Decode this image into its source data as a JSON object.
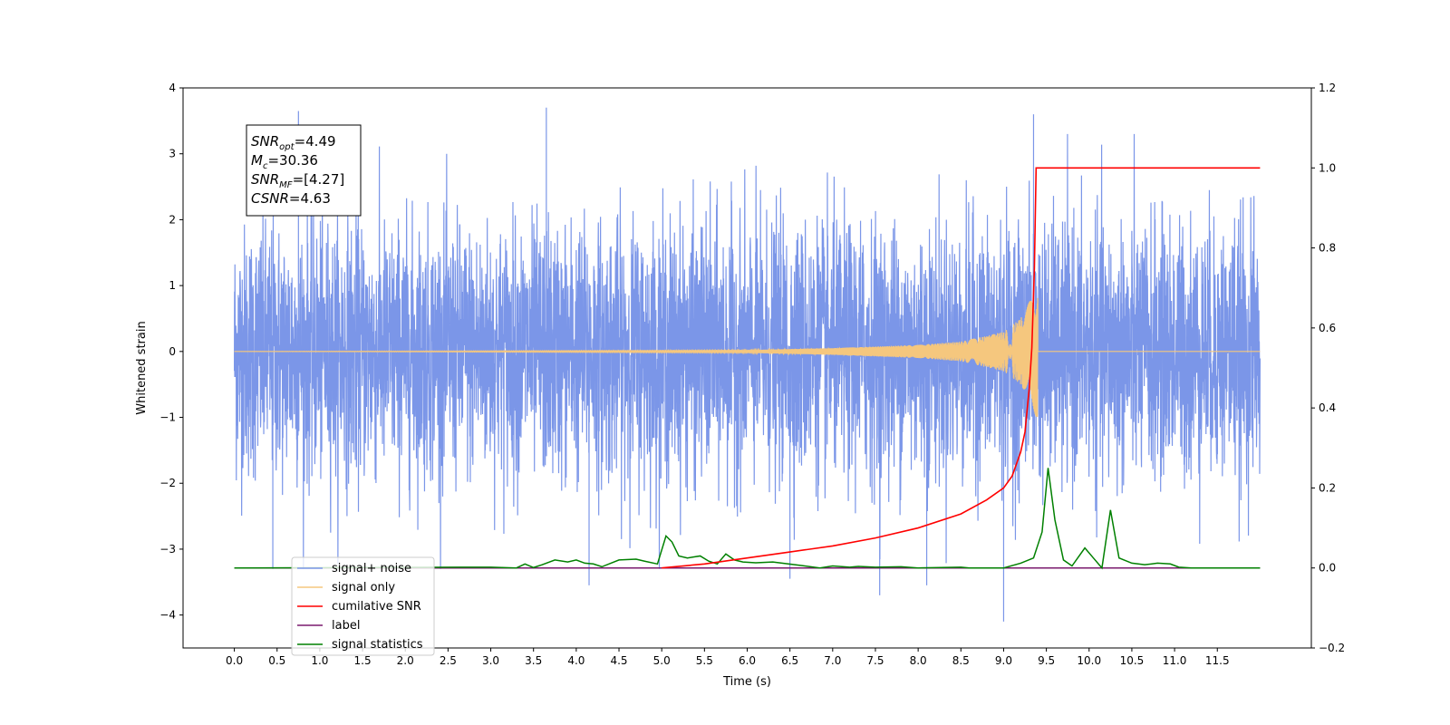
{
  "chart_data": {
    "type": "line",
    "xlabel": "Time (s)",
    "ylabel": "Whitened strain",
    "xlim": [
      -0.6,
      12.6
    ],
    "ylim": [
      -4.5,
      4.0
    ],
    "y2lim": [
      -0.2,
      1.2
    ],
    "grid": false,
    "legend_position": "bottom-left",
    "x_ticks": [
      "0.0",
      "0.5",
      "1.0",
      "1.5",
      "2.0",
      "2.5",
      "3.0",
      "3.5",
      "4.0",
      "4.5",
      "5.0",
      "5.5",
      "6.0",
      "6.5",
      "7.0",
      "7.5",
      "8.0",
      "8.5",
      "9.0",
      "9.5",
      "10.0",
      "10.5",
      "11.0",
      "11.5"
    ],
    "y_ticks": [
      "4",
      "3",
      "2",
      "1",
      "0",
      "−1",
      "−2",
      "−3",
      "−4"
    ],
    "y2_ticks": [
      "1.2",
      "1.0",
      "0.8",
      "0.6",
      "0.4",
      "0.2",
      "0.0",
      "−0.2"
    ],
    "annotation": {
      "lines": [
        {
          "main": "SNR",
          "sub": "opt",
          "rest": "=4.49"
        },
        {
          "main": "M",
          "sub": "c",
          "rest": "=30.36"
        },
        {
          "main": "SNR",
          "sub": "MF",
          "rest": "=[4.27]"
        },
        {
          "main": "CSNR",
          "sub": "",
          "rest": "=4.63"
        }
      ]
    },
    "legend": [
      {
        "label": "signal+ noise",
        "color": "#7b96e8"
      },
      {
        "label": "signal only",
        "color": "#f5c77e"
      },
      {
        "label": "cumilative SNR",
        "color": "#ff0000"
      },
      {
        "label": "label",
        "color": "#7a1a6e"
      },
      {
        "label": "signal statistics",
        "color": "#008000"
      }
    ],
    "series": [
      {
        "name": "signal+ noise",
        "axis": "left",
        "color": "#7b96e8",
        "x_range": [
          0.0,
          12.0
        ],
        "noise_sigma": 0.95,
        "notable_peaks": [
          [
            0.75,
            3.65
          ],
          [
            3.65,
            3.7
          ],
          [
            9.35,
            3.6
          ],
          [
            9.0,
            -4.1
          ],
          [
            4.15,
            -3.55
          ],
          [
            7.55,
            -3.7
          ],
          [
            8.1,
            -3.55
          ],
          [
            0.45,
            -3.3
          ],
          [
            6.5,
            -3.45
          ]
        ]
      },
      {
        "name": "signal only",
        "axis": "left",
        "color": "#f5c77e",
        "x": [
          0.0,
          6.0,
          7.0,
          8.0,
          8.5,
          9.0,
          9.2,
          9.3,
          9.4
        ],
        "amplitude": [
          0.0,
          0.02,
          0.05,
          0.1,
          0.15,
          0.3,
          0.5,
          0.75,
          1.05
        ]
      },
      {
        "name": "cumilative SNR",
        "axis": "right",
        "color": "#ff0000",
        "x": [
          5.0,
          5.5,
          6.0,
          6.5,
          7.0,
          7.5,
          8.0,
          8.5,
          8.8,
          9.0,
          9.1,
          9.2,
          9.25,
          9.3,
          9.33,
          9.36,
          9.38,
          12.0
        ],
        "y": [
          0.0,
          0.01,
          0.025,
          0.04,
          0.055,
          0.075,
          0.1,
          0.135,
          0.17,
          0.2,
          0.23,
          0.29,
          0.34,
          0.45,
          0.55,
          0.75,
          1.0,
          1.0
        ]
      },
      {
        "name": "label",
        "axis": "right",
        "color": "#7a1a6e",
        "x": [
          0.0,
          12.0
        ],
        "y": [
          0.0,
          0.0
        ]
      },
      {
        "name": "signal statistics",
        "axis": "right",
        "color": "#008000",
        "x": [
          0.0,
          3.0,
          3.3,
          3.4,
          3.5,
          3.6,
          3.75,
          3.9,
          4.0,
          4.1,
          4.2,
          4.3,
          4.5,
          4.7,
          4.8,
          4.95,
          5.05,
          5.12,
          5.2,
          5.3,
          5.45,
          5.55,
          5.65,
          5.75,
          5.85,
          5.95,
          6.1,
          6.3,
          6.6,
          6.85,
          7.0,
          7.2,
          7.3,
          7.5,
          7.8,
          8.0,
          8.5,
          8.6,
          9.0,
          9.2,
          9.35,
          9.45,
          9.52,
          9.6,
          9.7,
          9.8,
          9.95,
          10.05,
          10.15,
          10.25,
          10.35,
          10.5,
          10.65,
          10.8,
          10.95,
          11.05,
          11.2,
          12.0
        ],
        "y": [
          0.0,
          0.002,
          0.0,
          0.01,
          0.001,
          0.008,
          0.02,
          0.015,
          0.02,
          0.012,
          0.01,
          0.003,
          0.02,
          0.022,
          0.017,
          0.01,
          0.08,
          0.065,
          0.03,
          0.025,
          0.03,
          0.017,
          0.01,
          0.035,
          0.02,
          0.015,
          0.013,
          0.015,
          0.007,
          0.0,
          0.005,
          0.002,
          0.004,
          0.002,
          0.003,
          0.0,
          0.002,
          0.0,
          0.0,
          0.012,
          0.025,
          0.09,
          0.25,
          0.12,
          0.02,
          0.005,
          0.05,
          0.025,
          0.0,
          0.145,
          0.025,
          0.012,
          0.008,
          0.012,
          0.01,
          0.002,
          0.0,
          0.0
        ]
      }
    ]
  }
}
